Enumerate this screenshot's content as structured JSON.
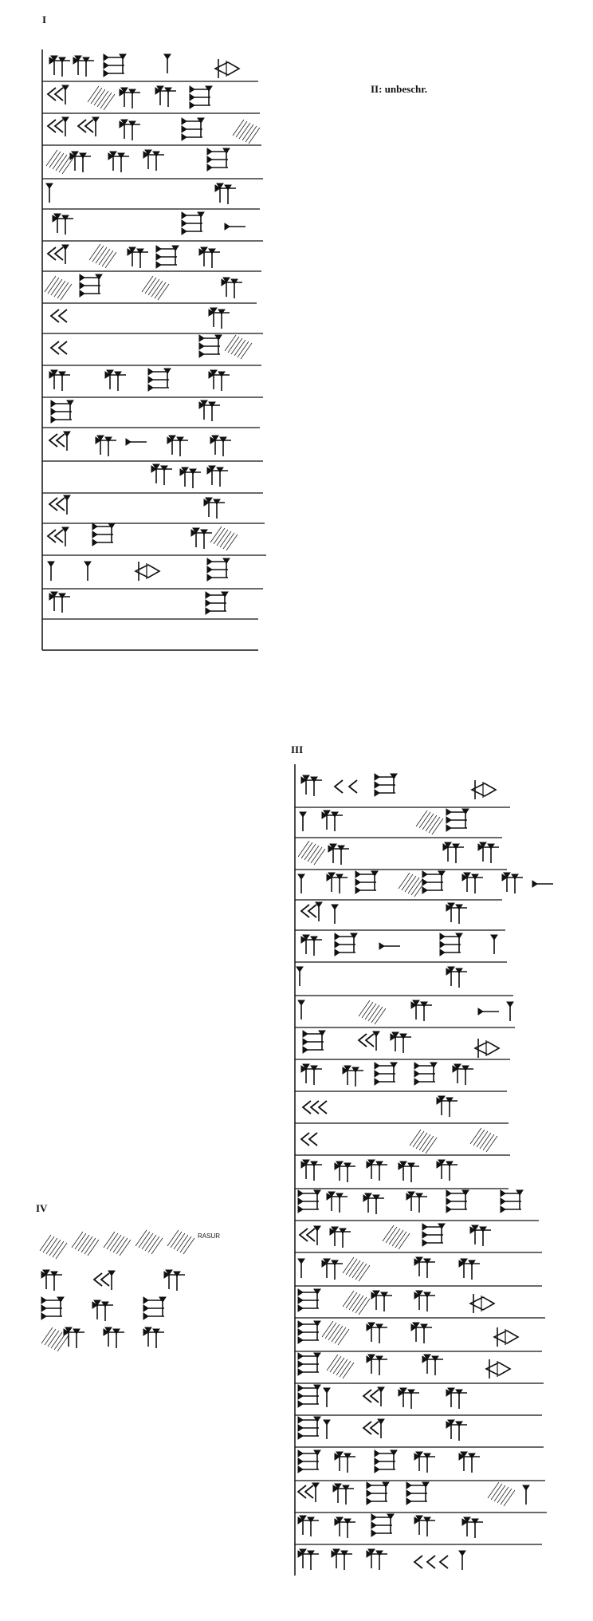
{
  "columns": [
    {
      "label": "I"
    },
    {
      "label": "II",
      "note": "II: unbeschr."
    },
    {
      "label": "III"
    },
    {
      "label": "IV",
      "annotation": "RASUR"
    }
  ]
}
